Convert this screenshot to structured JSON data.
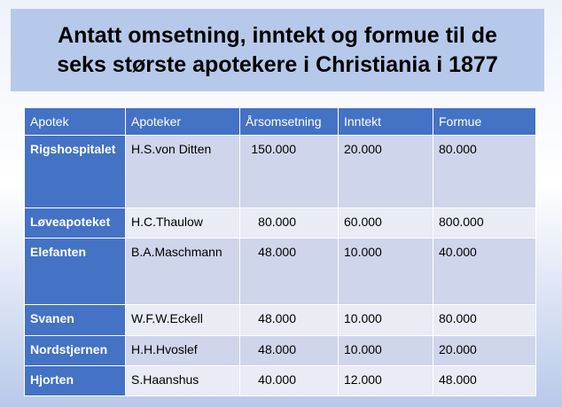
{
  "title": [
    "Antatt omsetning, inntekt og formue til de",
    "seks største apotekere i Christiania i 1877"
  ],
  "table": {
    "header": [
      "Apotek",
      "Apoteker",
      "Årsomsetning",
      "Inntekt",
      "Formue"
    ],
    "rows": [
      [
        "Rigshospitalet",
        "H.S.von Ditten",
        "150.000",
        "20.000",
        "80.000"
      ],
      [
        "Løveapoteket",
        "H.C.Thaulow",
        "80.000",
        "60.000",
        "800.000"
      ],
      [
        "Elefanten",
        "B.A.Maschmann",
        "48.000",
        "10.000",
        "40.000"
      ],
      [
        "Svanen",
        "W.F.W.Eckell",
        "48.000",
        "10.000",
        "80.000"
      ],
      [
        "Nordstjernen",
        "H.H.Hvoslef",
        "48.000",
        "10.000",
        "20.000"
      ],
      [
        "Hjorten",
        "S.Haanshus",
        "40.000",
        "12.000",
        "48.000"
      ]
    ]
  }
}
